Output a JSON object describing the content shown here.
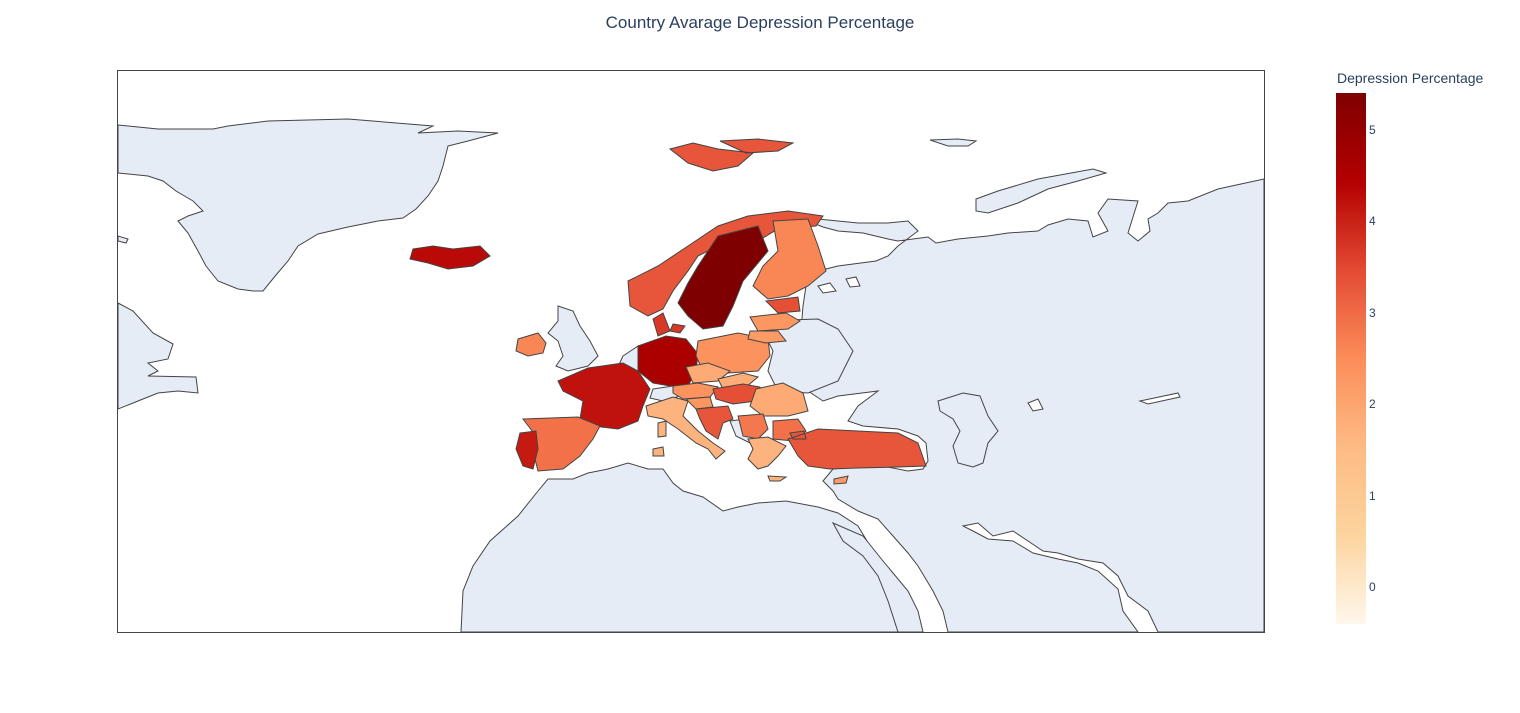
{
  "chart": {
    "title": "Country Avarage Depression Percentage",
    "colorbar_title": "Depression Percentage",
    "colorbar_ticks": [
      "5",
      "4",
      "3",
      "2",
      "1",
      "0"
    ],
    "colorscale": [
      "#fff7ec",
      "#fdd49e",
      "#fdbb84",
      "#fc8d59",
      "#e34a33",
      "#b30000",
      "#7f0000"
    ],
    "land_color": "#e5ecf6",
    "ocean_color": "#ffffff",
    "border_color": "#444444"
  },
  "chart_data": {
    "type": "choropleth",
    "title": "Country Avarage Depression Percentage",
    "scope": "europe",
    "color_title": "Depression Percentage",
    "crange": [
      -0.4,
      5.4
    ],
    "colorscale": "OrRd",
    "countries": [
      {
        "name": "Sweden",
        "value": 5.4
      },
      {
        "name": "Germany",
        "value": 4.6
      },
      {
        "name": "Iceland",
        "value": 4.3
      },
      {
        "name": "France",
        "value": 4.2
      },
      {
        "name": "Portugal",
        "value": 4.1
      },
      {
        "name": "Denmark",
        "value": 3.7
      },
      {
        "name": "Norway",
        "value": 3.3
      },
      {
        "name": "Turkey",
        "value": 3.3
      },
      {
        "name": "Hungary",
        "value": 3.4
      },
      {
        "name": "Croatia",
        "value": 3.3
      },
      {
        "name": "Estonia",
        "value": 3.4
      },
      {
        "name": "Spain",
        "value": 2.9
      },
      {
        "name": "Finland",
        "value": 2.6
      },
      {
        "name": "Poland",
        "value": 2.4
      },
      {
        "name": "Ireland",
        "value": 2.6
      },
      {
        "name": "Latvia",
        "value": 2.3
      },
      {
        "name": "Lithuania",
        "value": 2.2
      },
      {
        "name": "Austria",
        "value": 2.4
      },
      {
        "name": "Serbia",
        "value": 2.8
      },
      {
        "name": "Bulgaria",
        "value": 2.9
      },
      {
        "name": "Czechia",
        "value": 1.9
      },
      {
        "name": "Slovakia",
        "value": 1.8
      },
      {
        "name": "Romania",
        "value": 1.9
      },
      {
        "name": "Italy",
        "value": 1.7
      },
      {
        "name": "Greece",
        "value": 1.7
      },
      {
        "name": "Slovenia",
        "value": 2.3
      },
      {
        "name": "Cyprus",
        "value": 2.2
      }
    ]
  }
}
